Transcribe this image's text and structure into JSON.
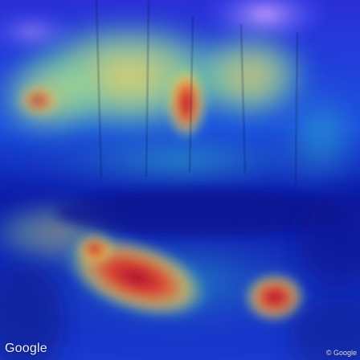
{
  "image": {
    "heatmap_overlay": true,
    "colors": {
      "sky": "#8a7bff",
      "hot": "#c8102e",
      "warm": "#ffd84a",
      "mid": "#35d6b6",
      "cool": "#1f36d0",
      "cold": "#0b1a8a"
    }
  },
  "watermark": {
    "logo_text": "Google",
    "copyright_text": "© Google"
  }
}
